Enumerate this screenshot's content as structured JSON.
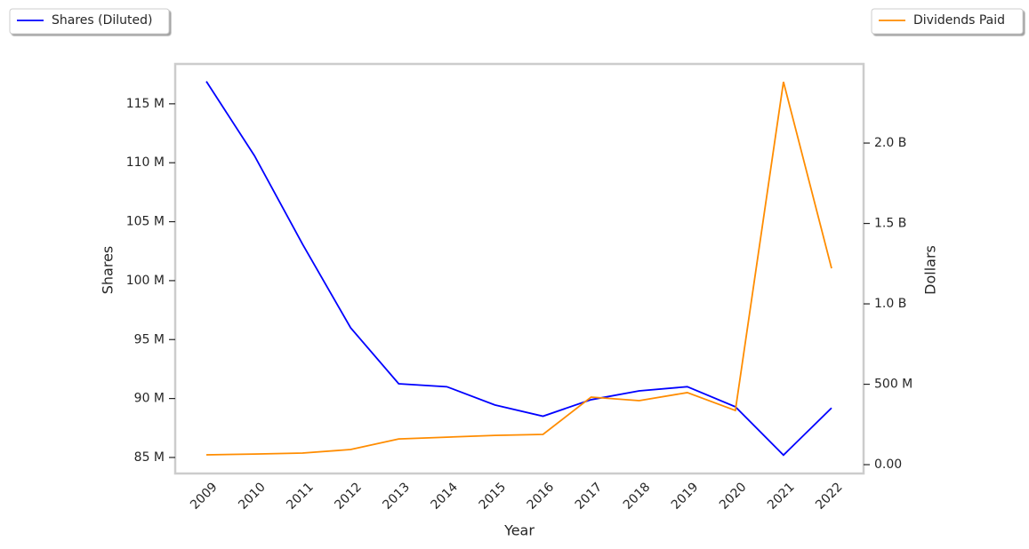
{
  "chart_data": {
    "type": "line",
    "x_label": "Year",
    "y_label": "Shares",
    "y2_label": "Dollars",
    "categories": [
      "2009",
      "2010",
      "2011",
      "2012",
      "2013",
      "2014",
      "2015",
      "2016",
      "2017",
      "2018",
      "2019",
      "2020",
      "2021",
      "2022"
    ],
    "series": [
      {
        "name": "Shares (Diluted)",
        "color": "#0000ff",
        "axis": "y",
        "values": [
          116900000,
          110600000,
          103100000,
          96000000,
          91250000,
          91000000,
          89450000,
          88500000,
          89900000,
          90650000,
          91000000,
          89300000,
          85200000,
          89200000
        ]
      },
      {
        "name": "Dividends Paid",
        "color": "#ff8c00",
        "axis": "y2",
        "values": [
          61000000,
          66000000,
          72000000,
          94000000,
          160000000,
          171000000,
          182000000,
          188000000,
          420000000,
          398000000,
          448000000,
          337000000,
          2381000000,
          1221000000
        ]
      }
    ],
    "ylim": [
      83640000,
      118380000
    ],
    "yticks": [
      {
        "value": 85000000,
        "label": "85 M"
      },
      {
        "value": 90000000,
        "label": "90 M"
      },
      {
        "value": 95000000,
        "label": "95 M"
      },
      {
        "value": 100000000,
        "label": "100 M"
      },
      {
        "value": 105000000,
        "label": "105 M"
      },
      {
        "value": 110000000,
        "label": "110 M"
      },
      {
        "value": 115000000,
        "label": "115 M"
      }
    ],
    "y2lim": [
      -55000000,
      2492000000
    ],
    "y2ticks": [
      {
        "value": 0,
        "label": "0.00"
      },
      {
        "value": 500000000,
        "label": "500 M"
      },
      {
        "value": 1000000000,
        "label": "1.0 B"
      },
      {
        "value": 1500000000,
        "label": "1.5 B"
      },
      {
        "value": 2000000000,
        "label": "2.0 B"
      }
    ]
  }
}
